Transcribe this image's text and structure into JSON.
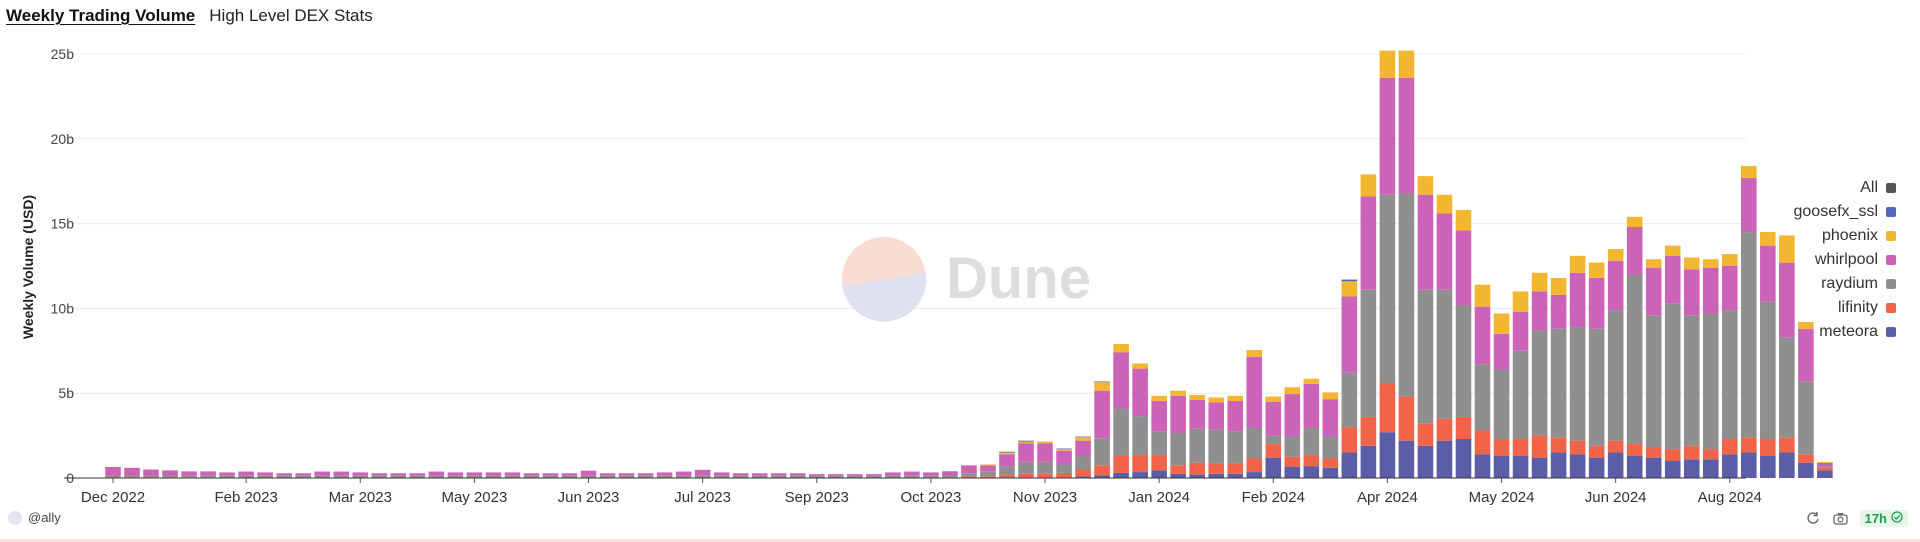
{
  "header": {
    "title": "Weekly Trading Volume",
    "subtitle": "High Level DEX Stats"
  },
  "watermark": {
    "text": "Dune"
  },
  "footer": {
    "author": "@ally",
    "refresh_badge": "17h"
  },
  "colors": {
    "meteora": "#5b5ea6",
    "lifinity": "#f06449",
    "raydium": "#8f8f8f",
    "whirlpool": "#cd63b8",
    "phoenix": "#f2b630",
    "goosefx_ssl": "#5168b8",
    "All": "#555555"
  },
  "chart_data": {
    "type": "bar",
    "stacked": true,
    "title": "Weekly Trading Volume",
    "ylabel": "Weekly Volume (USD)",
    "xlabel": "",
    "ylim": [
      0,
      25
    ],
    "y_unit": "b",
    "y_ticks": [
      "0",
      "5b",
      "10b",
      "15b",
      "20b",
      "25b"
    ],
    "x_tick_labels": [
      {
        "week": 1,
        "label": "Dec 2022"
      },
      {
        "week": 8,
        "label": "Feb 2023"
      },
      {
        "week": 14,
        "label": "Mar 2023"
      },
      {
        "week": 20,
        "label": "May 2023"
      },
      {
        "week": 26,
        "label": "Jun 2023"
      },
      {
        "week": 32,
        "label": "Jul 2023"
      },
      {
        "week": 38,
        "label": "Sep 2023"
      },
      {
        "week": 44,
        "label": "Oct 2023"
      },
      {
        "week": 50,
        "label": "Nov 2023"
      },
      {
        "week": 56,
        "label": "Jan 2024"
      },
      {
        "week": 62,
        "label": "Feb 2024"
      },
      {
        "week": 68,
        "label": "Apr 2024"
      },
      {
        "week": 74,
        "label": "May 2024"
      },
      {
        "week": 80,
        "label": "Jun 2024"
      },
      {
        "week": 86,
        "label": "Aug 2024"
      }
    ],
    "grid": true,
    "legend_position": "right",
    "legend": [
      "All",
      "goosefx_ssl",
      "phoenix",
      "whirlpool",
      "raydium",
      "lifinity",
      "meteora"
    ],
    "series_order": [
      "meteora",
      "lifinity",
      "raydium",
      "whirlpool",
      "phoenix",
      "goosefx_ssl"
    ],
    "series": [
      {
        "name": "meteora",
        "values": [
          0,
          0,
          0,
          0,
          0,
          0,
          0,
          0,
          0,
          0,
          0,
          0,
          0,
          0,
          0,
          0,
          0,
          0,
          0,
          0,
          0,
          0,
          0,
          0,
          0,
          0,
          0,
          0,
          0,
          0,
          0,
          0,
          0,
          0,
          0,
          0,
          0,
          0,
          0,
          0,
          0,
          0,
          0,
          0,
          0,
          0,
          0,
          0.05,
          0.05,
          0.05,
          0.05,
          0.1,
          0.15,
          0.3,
          0.35,
          0.45,
          0.25,
          0.2,
          0.25,
          0.25,
          0.35,
          1.2,
          0.65,
          0.7,
          0.6,
          1.5,
          1.9,
          2.7,
          2.2,
          1.9,
          2.2,
          2.3,
          1.4,
          1.3,
          1.3,
          1.2,
          1.5,
          1.4,
          1.2,
          1.5,
          1.3,
          1.2,
          1.0,
          1.1,
          1.1,
          1.4,
          1.5,
          1.3,
          1.5,
          0.9,
          0.45
        ]
      },
      {
        "name": "lifinity",
        "values": [
          0.05,
          0.05,
          0.05,
          0.05,
          0.04,
          0.04,
          0.03,
          0.03,
          0.03,
          0.03,
          0.03,
          0.03,
          0.03,
          0.03,
          0.03,
          0.03,
          0.03,
          0.03,
          0.03,
          0.03,
          0.03,
          0.03,
          0.03,
          0.03,
          0.03,
          0.03,
          0.03,
          0.03,
          0.03,
          0.03,
          0.03,
          0.03,
          0.03,
          0.03,
          0.03,
          0.03,
          0.03,
          0.03,
          0.03,
          0.03,
          0.03,
          0.03,
          0.03,
          0.03,
          0.05,
          0.08,
          0.1,
          0.15,
          0.2,
          0.2,
          0.25,
          0.4,
          0.6,
          1.0,
          1.0,
          0.9,
          0.5,
          0.7,
          0.6,
          0.6,
          0.8,
          0.8,
          0.6,
          0.65,
          0.55,
          1.5,
          1.7,
          2.9,
          2.6,
          1.3,
          1.3,
          1.3,
          1.4,
          1.0,
          1.0,
          1.3,
          0.9,
          0.8,
          0.7,
          0.7,
          0.7,
          0.6,
          0.7,
          0.8,
          0.6,
          0.9,
          0.9,
          1.0,
          0.9,
          0.5,
          0.15
        ]
      },
      {
        "name": "raydium",
        "values": [
          0.1,
          0.1,
          0.1,
          0.1,
          0.1,
          0.1,
          0.1,
          0.1,
          0.1,
          0.1,
          0.1,
          0.1,
          0.1,
          0.1,
          0.1,
          0.1,
          0.1,
          0.1,
          0.1,
          0.1,
          0.1,
          0.1,
          0.1,
          0.1,
          0.1,
          0.1,
          0.1,
          0.1,
          0.1,
          0.1,
          0.1,
          0.1,
          0.1,
          0.1,
          0.1,
          0.1,
          0.1,
          0.1,
          0.1,
          0.1,
          0.1,
          0.1,
          0.1,
          0.1,
          0.1,
          0.2,
          0.3,
          0.5,
          0.7,
          0.7,
          0.5,
          0.8,
          1.6,
          2.8,
          2.3,
          1.4,
          1.9,
          2.0,
          2.0,
          1.9,
          1.8,
          0.5,
          1.2,
          1.6,
          1.3,
          3.2,
          7.5,
          11.1,
          12.0,
          7.9,
          7.6,
          6.6,
          3.9,
          4.1,
          5.2,
          6.2,
          6.4,
          6.7,
          6.9,
          7.7,
          10.0,
          7.8,
          8.6,
          7.7,
          8.0,
          7.6,
          12.1,
          8.1,
          5.9,
          4.3,
          0.05
        ]
      },
      {
        "name": "whirlpool",
        "values": [
          0.5,
          0.45,
          0.35,
          0.3,
          0.25,
          0.25,
          0.2,
          0.25,
          0.2,
          0.15,
          0.15,
          0.25,
          0.25,
          0.2,
          0.15,
          0.15,
          0.15,
          0.25,
          0.2,
          0.2,
          0.2,
          0.2,
          0.15,
          0.15,
          0.15,
          0.3,
          0.15,
          0.15,
          0.15,
          0.2,
          0.25,
          0.35,
          0.2,
          0.15,
          0.15,
          0.15,
          0.15,
          0.1,
          0.1,
          0.1,
          0.1,
          0.2,
          0.25,
          0.2,
          0.25,
          0.45,
          0.35,
          0.7,
          1.1,
          1.1,
          0.8,
          0.9,
          2.8,
          3.3,
          2.8,
          1.8,
          2.2,
          1.7,
          1.6,
          1.8,
          4.2,
          2.0,
          2.5,
          2.6,
          2.2,
          4.5,
          5.5,
          6.9,
          6.8,
          5.6,
          4.5,
          4.4,
          3.4,
          2.1,
          2.3,
          2.3,
          2.0,
          3.2,
          3.0,
          2.9,
          2.8,
          2.8,
          2.8,
          2.7,
          2.7,
          2.6,
          3.2,
          3.3,
          4.4,
          3.1,
          0.25
        ]
      },
      {
        "name": "phoenix",
        "values": [
          0,
          0,
          0,
          0,
          0,
          0,
          0,
          0,
          0,
          0,
          0,
          0,
          0,
          0,
          0,
          0,
          0,
          0,
          0,
          0,
          0,
          0,
          0,
          0,
          0,
          0,
          0,
          0,
          0,
          0,
          0,
          0,
          0,
          0,
          0,
          0,
          0,
          0,
          0,
          0,
          0,
          0,
          0,
          0,
          0,
          0.02,
          0.05,
          0.1,
          0.1,
          0.1,
          0.1,
          0.2,
          0.5,
          0.5,
          0.3,
          0.3,
          0.3,
          0.3,
          0.3,
          0.3,
          0.4,
          0.3,
          0.4,
          0.3,
          0.4,
          0.9,
          1.3,
          1.6,
          1.6,
          1.1,
          1.1,
          1.2,
          1.3,
          1.2,
          1.2,
          1.1,
          1.0,
          1.0,
          0.9,
          0.7,
          0.6,
          0.5,
          0.6,
          0.7,
          0.5,
          0.7,
          0.7,
          0.8,
          1.6,
          0.4,
          0.05
        ]
      },
      {
        "name": "goosefx_ssl",
        "values": [
          0,
          0,
          0,
          0,
          0,
          0,
          0,
          0,
          0,
          0,
          0,
          0,
          0,
          0,
          0,
          0,
          0,
          0,
          0,
          0,
          0,
          0,
          0,
          0,
          0,
          0,
          0,
          0,
          0,
          0,
          0,
          0,
          0,
          0,
          0,
          0,
          0,
          0,
          0,
          0,
          0,
          0,
          0,
          0,
          0,
          0,
          0,
          0.05,
          0.05,
          0,
          0.04,
          0.04,
          0.04,
          0,
          0,
          0,
          0,
          0,
          0,
          0,
          0,
          0,
          0,
          0,
          0,
          0.1,
          0,
          0,
          0,
          0,
          0,
          0,
          0,
          0,
          0,
          0,
          0,
          0,
          0,
          0,
          0,
          0,
          0,
          0,
          0,
          0,
          0,
          0,
          0,
          0,
          0
        ]
      }
    ]
  }
}
